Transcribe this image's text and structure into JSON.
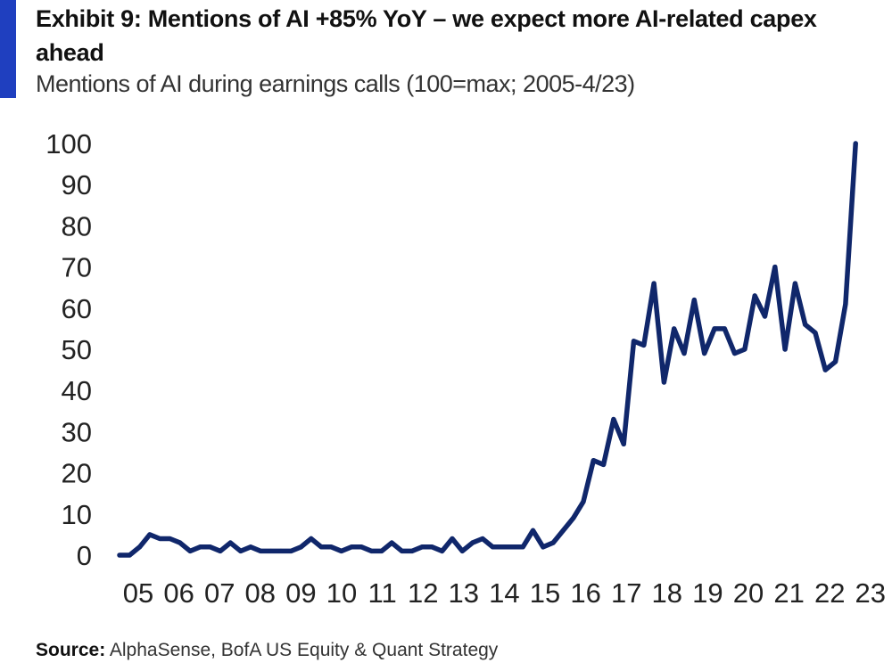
{
  "header": {
    "title": "Exhibit 9: Mentions of AI +85% YoY – we expect more AI-related capex ahead",
    "subtitle": "Mentions of AI during earnings calls (100=max; 2005-4/23)"
  },
  "footer": {
    "source_label": "Source:",
    "source_text": "AlphaSense, BofA US Equity & Quant Strategy"
  },
  "colors": {
    "accent": "#1f3fbf",
    "line": "#10276b"
  },
  "chart_data": {
    "type": "line",
    "title": "Exhibit 9: Mentions of AI +85% YoY – we expect more AI-related capex ahead",
    "subtitle": "Mentions of AI during earnings calls (100=max; 2005-4/23)",
    "xlabel": "",
    "ylabel": "",
    "categories": [
      "05",
      "06",
      "07",
      "08",
      "09",
      "10",
      "11",
      "12",
      "13",
      "14",
      "15",
      "16",
      "17",
      "18",
      "19",
      "20",
      "21",
      "22",
      "23"
    ],
    "ylim": [
      0,
      100
    ],
    "yticks": [
      0,
      10,
      20,
      30,
      40,
      50,
      60,
      70,
      80,
      90,
      100
    ],
    "xlim": [
      2005,
      2023.4
    ],
    "grid": false,
    "legend": "none",
    "series": [
      {
        "x": [
          2005.0,
          2005.25,
          2005.5,
          2005.75,
          2006.0,
          2006.25,
          2006.5,
          2006.75,
          2007.0,
          2007.25,
          2007.5,
          2007.75,
          2008.0,
          2008.25,
          2008.5,
          2008.75,
          2009.0,
          2009.25,
          2009.5,
          2009.75,
          2010.0,
          2010.25,
          2010.5,
          2010.75,
          2011.0,
          2011.25,
          2011.5,
          2011.75,
          2012.0,
          2012.25,
          2012.5,
          2012.75,
          2013.0,
          2013.25,
          2013.5,
          2013.75,
          2014.0,
          2014.25,
          2014.5,
          2014.75,
          2015.0,
          2015.25,
          2015.5,
          2015.75,
          2016.0,
          2016.25,
          2016.5,
          2016.75,
          2017.0,
          2017.25,
          2017.5,
          2017.75,
          2018.0,
          2018.25,
          2018.5,
          2018.75,
          2019.0,
          2019.25,
          2019.5,
          2019.75,
          2020.0,
          2020.25,
          2020.5,
          2020.75,
          2021.0,
          2021.25,
          2021.5,
          2021.75,
          2022.0,
          2022.25,
          2022.5,
          2022.75,
          2023.0,
          2023.25
        ],
        "values": [
          0,
          0,
          2,
          5,
          4,
          4,
          3,
          1,
          2,
          2,
          1,
          3,
          1,
          2,
          1,
          1,
          1,
          1,
          2,
          4,
          2,
          2,
          1,
          2,
          2,
          1,
          1,
          3,
          1,
          1,
          2,
          2,
          1,
          4,
          1,
          3,
          4,
          2,
          2,
          2,
          2,
          6,
          2,
          3,
          6,
          9,
          13,
          23,
          22,
          33,
          27,
          52,
          51,
          66,
          42,
          55,
          49,
          62,
          49,
          55,
          55,
          49,
          50,
          63,
          58,
          70,
          50,
          66,
          56,
          54,
          45,
          47,
          61,
          100
        ]
      }
    ]
  }
}
